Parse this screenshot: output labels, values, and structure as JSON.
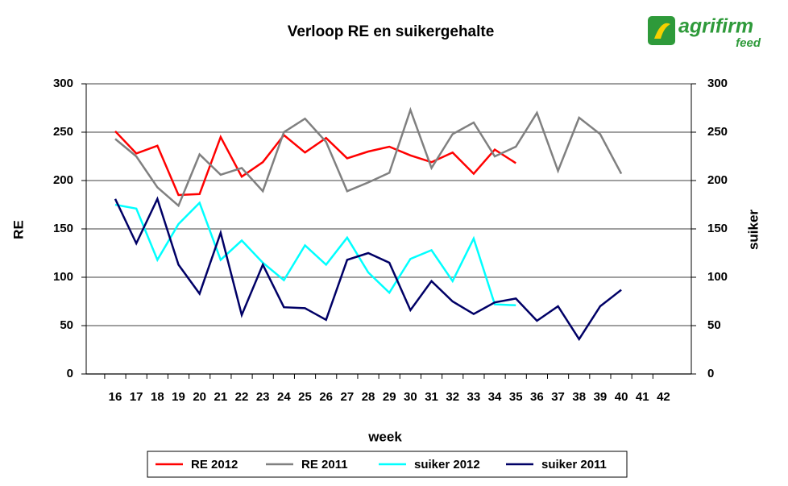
{
  "logo": {
    "name": "agrifirm",
    "sub": "feed"
  },
  "chart_data": {
    "type": "line",
    "title": "Verloop RE en suikergehalte",
    "x_label": "week",
    "y_label": "RE",
    "y2_label": "suiker",
    "categories": [
      "16",
      "17",
      "18",
      "19",
      "20",
      "21",
      "22",
      "23",
      "24",
      "25",
      "26",
      "27",
      "28",
      "29",
      "30",
      "31",
      "32",
      "33",
      "34",
      "35",
      "36",
      "37",
      "38",
      "39",
      "40",
      "41",
      "42"
    ],
    "ylim": [
      0,
      300
    ],
    "yticks": [
      0,
      50,
      100,
      150,
      200,
      250,
      300
    ],
    "y2lim": [
      0,
      300
    ],
    "y2ticks": [
      0,
      50,
      100,
      150,
      200,
      250,
      300
    ],
    "grid": true,
    "legend": "bottom",
    "series": [
      {
        "name": "RE 2012",
        "color": "#ff0000",
        "values": [
          251,
          228,
          236,
          185,
          186,
          245,
          204,
          219,
          247,
          229,
          244,
          223,
          230,
          235,
          226,
          219,
          229,
          207,
          232,
          218,
          null,
          null,
          null,
          null,
          null,
          null,
          null
        ]
      },
      {
        "name": "RE 2011",
        "color": "#808080",
        "values": [
          243,
          225,
          193,
          174,
          227,
          206,
          213,
          189,
          250,
          264,
          240,
          189,
          198,
          208,
          273,
          213,
          248,
          260,
          225,
          235,
          270,
          210,
          265,
          248,
          207,
          null,
          null
        ]
      },
      {
        "name": "suiker 2012",
        "color": "#00ffff",
        "axis": "y2",
        "values": [
          175,
          171,
          118,
          155,
          177,
          118,
          138,
          115,
          97,
          133,
          113,
          141,
          105,
          84,
          119,
          128,
          96,
          140,
          72,
          71,
          null,
          null,
          null,
          null,
          null,
          null,
          null
        ]
      },
      {
        "name": "suiker 2011",
        "color": "#000066",
        "axis": "y2",
        "values": [
          181,
          135,
          181,
          113,
          83,
          146,
          61,
          113,
          69,
          68,
          56,
          118,
          125,
          115,
          66,
          96,
          75,
          62,
          74,
          78,
          55,
          70,
          36,
          70,
          87,
          null,
          null
        ]
      }
    ]
  }
}
